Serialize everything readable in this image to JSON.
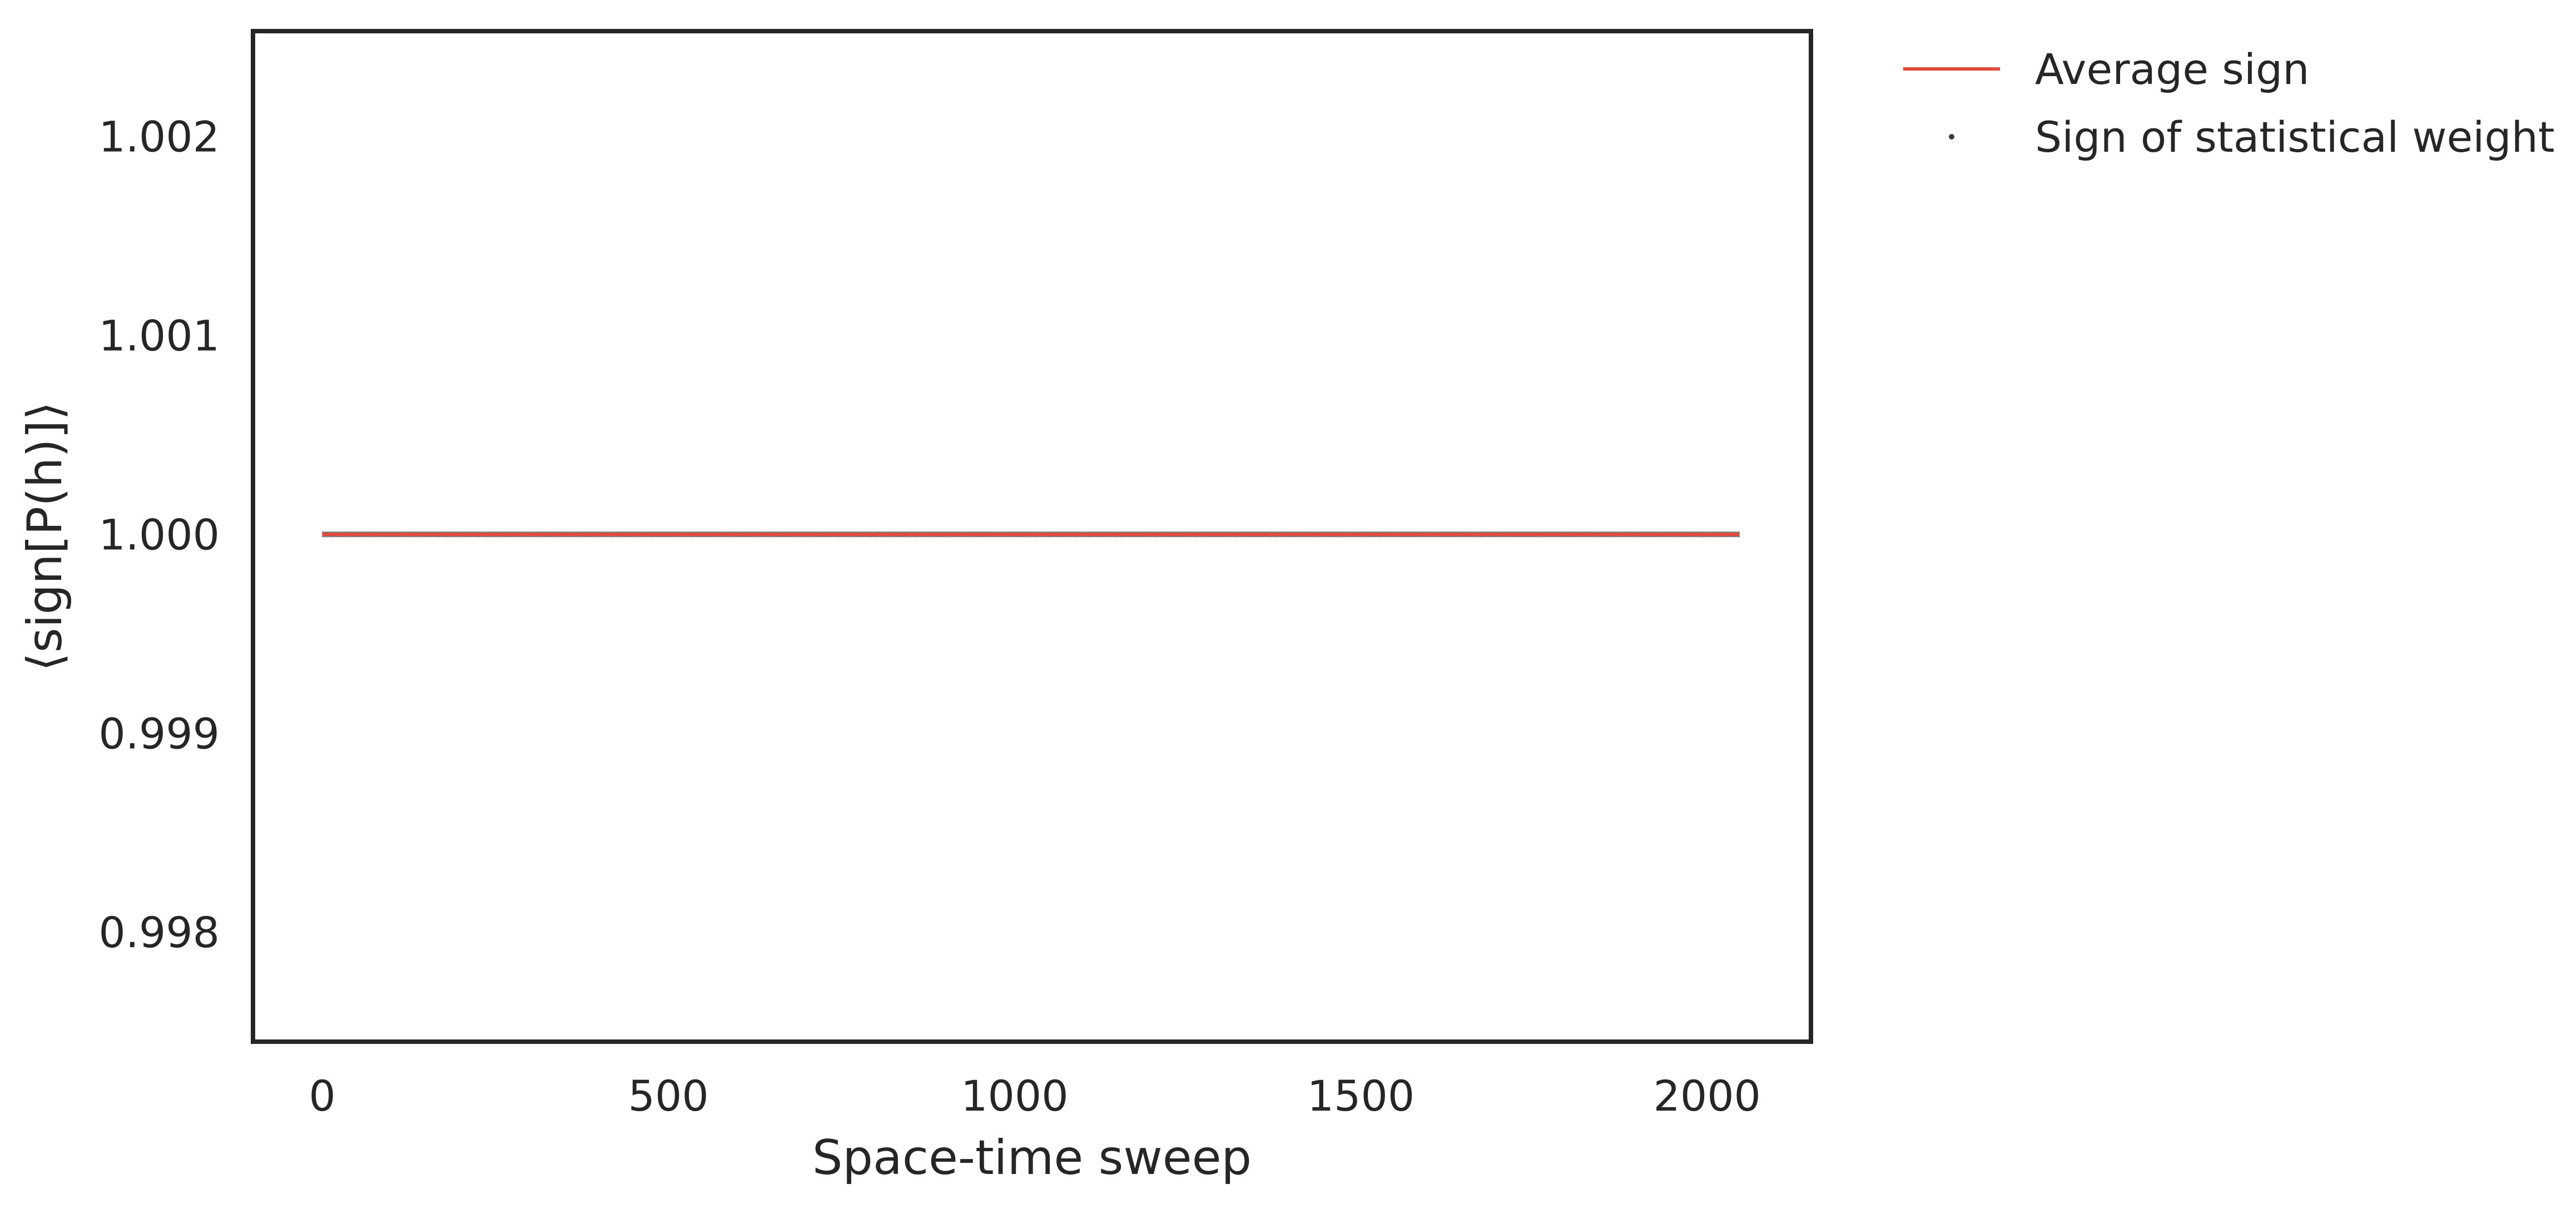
{
  "chart_data": {
    "type": "line",
    "title": "",
    "xlabel": "Space-time sweep",
    "ylabel": "⟨sign[P(h)]⟩",
    "xlim": [
      -100,
      2150
    ],
    "ylim": [
      0.99745,
      1.00253
    ],
    "x_ticks": [
      0,
      500,
      1000,
      1500,
      2000
    ],
    "x_tick_labels": [
      "0",
      "500",
      "1000",
      "1500",
      "2000"
    ],
    "y_ticks": [
      0.998,
      0.999,
      1.0,
      1.001,
      1.002
    ],
    "y_tick_labels": [
      "0.998",
      "0.999",
      "1.000",
      "1.001",
      "1.002"
    ],
    "grid": false,
    "legend_position": "outside-top-right",
    "series": [
      {
        "name": "Average sign",
        "kind": "line",
        "color": "#e24a3b",
        "x": [
          0,
          2047
        ],
        "values": [
          1.0,
          1.0
        ]
      },
      {
        "name": "Sign of statistical weight",
        "kind": "scatter",
        "color": "#3b3b3b",
        "x_start": 0,
        "x_end": 2047,
        "value": 1.0
      }
    ],
    "legend": [
      {
        "label": "Average sign",
        "marker": "line",
        "color": "#e24a3b"
      },
      {
        "label": "Sign of statistical weight",
        "marker": "dot",
        "color": "#3b3b3b"
      }
    ]
  }
}
